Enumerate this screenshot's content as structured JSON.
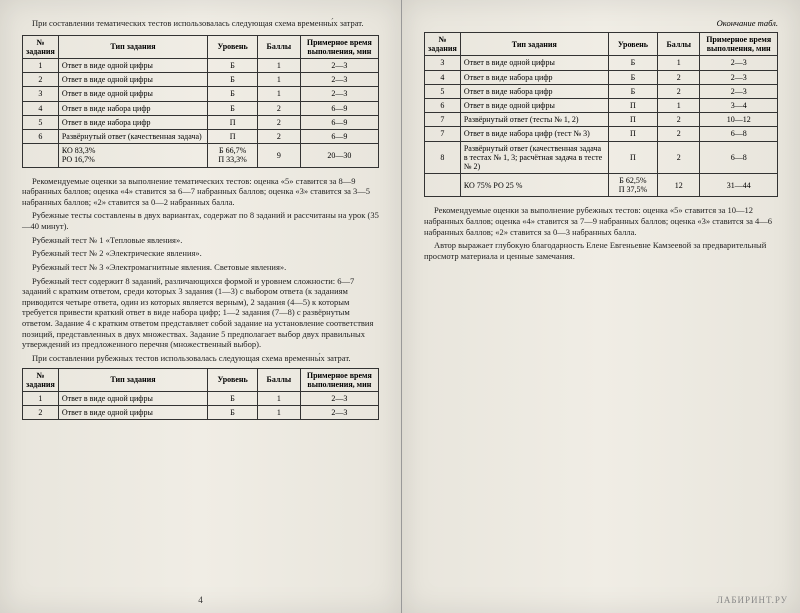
{
  "left": {
    "intro": "При составлении тематических тестов использовалась следующая схема временны́х затрат.",
    "table1": {
      "headers": [
        "№ задания",
        "Тип задания",
        "Уровень",
        "Баллы",
        "Примерное время выполнения, мин"
      ],
      "rows": [
        [
          "1",
          "Ответ в виде одной цифры",
          "Б",
          "1",
          "2—3"
        ],
        [
          "2",
          "Ответ в виде одной цифры",
          "Б",
          "1",
          "2—3"
        ],
        [
          "3",
          "Ответ в виде одной цифры",
          "Б",
          "1",
          "2—3"
        ],
        [
          "4",
          "Ответ в виде набора цифр",
          "Б",
          "2",
          "6—9"
        ],
        [
          "5",
          "Ответ в виде набора цифр",
          "П",
          "2",
          "6—9"
        ],
        [
          "6",
          "Развёрнутый ответ (качественная задача)",
          "П",
          "2",
          "6—9"
        ],
        [
          "",
          "КО 83,3%\nРО 16,7%",
          "Б 66,7%\nП 33,3%",
          "9",
          "20—30"
        ]
      ]
    },
    "para1": "Рекомендуемые оценки за выполнение тематических тестов: оценка «5» ставится за 8—9 набранных баллов; оценка «4» ставится за 6—7 набранных баллов; оценка «3» ставится за 3—5 набранных баллов; «2» ставится за 0—2 набранных балла.",
    "para2": "Рубежные тесты составлены в двух вариантах, содержат по 8 заданий и рассчитаны на урок (35—40 минут).",
    "para3": "Рубежный тест № 1 «Тепловые явления».",
    "para4": "Рубежный тест № 2 «Электрические явления».",
    "para5": "Рубежный тест № 3 «Электромагнитные явления. Световые явления».",
    "para6": "Рубежный тест содержит 8 заданий, различающихся формой и уровнем сложности: 6—7 заданий с кратким ответом, среди которых 3 задания (1—3) с выбором ответа (к заданиям приводится четыре ответа, один из которых является верным), 2 задания (4—5) к которым требуется привести краткий ответ в виде набора цифр; 1—2 задания (7—8) с развёрнутым ответом. Задание 4 с кратким ответом представляет собой задание на установление соответствия позиций, представленных в двух множествах. Задание 5 предполагает выбор двух правильных утверждений из предложенного перечня (множественный выбор).",
    "para7": "При составлении рубежных тестов использовалась следующая схема временны́х затрат.",
    "table2": {
      "headers": [
        "№ задания",
        "Тип задания",
        "Уровень",
        "Баллы",
        "Примерное время выполнения, мин"
      ],
      "rows": [
        [
          "1",
          "Ответ в виде одной цифры",
          "Б",
          "1",
          "2—3"
        ],
        [
          "2",
          "Ответ в виде одной цифры",
          "Б",
          "1",
          "2—3"
        ]
      ]
    },
    "pagenum": "4"
  },
  "right": {
    "header": "Окончание табл.",
    "table": {
      "headers": [
        "№ задания",
        "Тип задания",
        "Уровень",
        "Баллы",
        "Примерное время выполнения, мин"
      ],
      "rows": [
        [
          "3",
          "Ответ в виде одной цифры",
          "Б",
          "1",
          "2—3"
        ],
        [
          "4",
          "Ответ в виде набора цифр",
          "Б",
          "2",
          "2—3"
        ],
        [
          "5",
          "Ответ в виде набора цифр",
          "Б",
          "2",
          "2—3"
        ],
        [
          "6",
          "Ответ в виде одной цифры",
          "П",
          "1",
          "3—4"
        ],
        [
          "7",
          "Развёрнутый ответ (тесты № 1, 2)",
          "П",
          "2",
          "10—12"
        ],
        [
          "7",
          "Ответ в виде набора цифр (тест № 3)",
          "П",
          "2",
          "6—8"
        ],
        [
          "8",
          "Развёрнутый ответ (качественная задача в тестах № 1, 3; расчётная задача в тесте № 2)",
          "П",
          "2",
          "6—8"
        ],
        [
          "",
          "КО 75% РО 25 %",
          "Б 62,5%\nП 37,5%",
          "12",
          "31—44"
        ]
      ]
    },
    "para1": "Рекомендуемые оценки за выполнение рубежных тестов: оценка «5» ставится за 10—12 набранных баллов; оценка «4» ставится за 7—9 набранных баллов; оценка «3» ставится за 4—6 набранных баллов; «2» ставится за 0—3 набранных балла.",
    "para2": "Автор выражает глубокую благодарность Елене Евгеньевне Камзеевой за предварительный просмотр материала и ценные замечания.",
    "watermark": "ЛАБИРИНТ.РУ"
  }
}
